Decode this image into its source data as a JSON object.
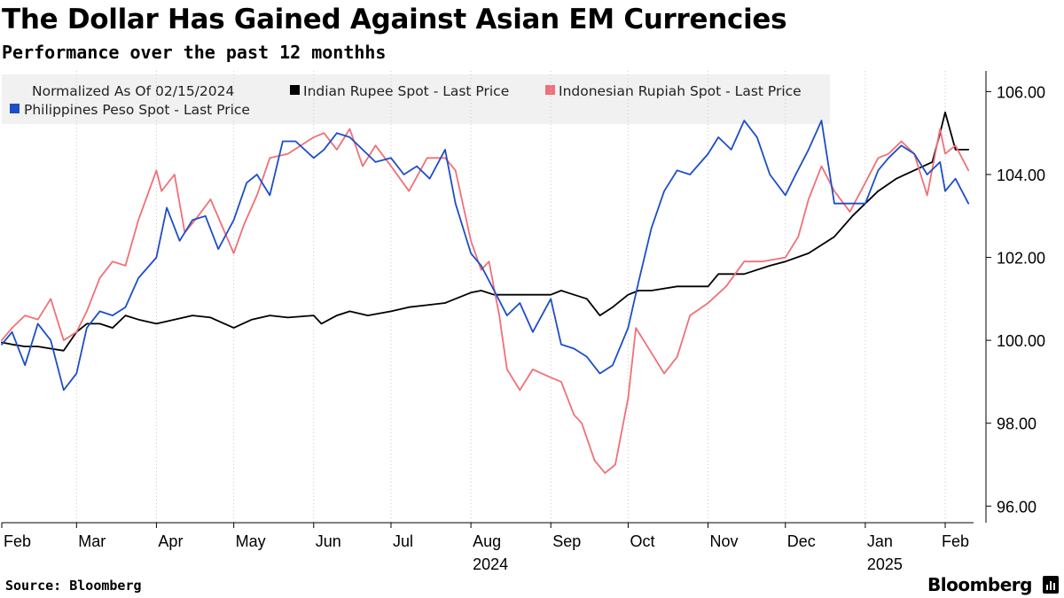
{
  "header": {
    "title": "The Dollar Has Gained Against Asian EM Currencies",
    "subtitle": "Performance over the past 12 monthhs"
  },
  "footer": {
    "source": "Source: Bloomberg",
    "brand": "Bloomberg"
  },
  "chart_data": {
    "type": "line",
    "legend_note": "Normalized As Of 02/15/2024",
    "legend_placement": "top-left",
    "x_range": [
      "2024-02-01",
      "2025-02-12"
    ],
    "ylim": [
      95.6,
      106.5
    ],
    "y_ticks": [
      96,
      98,
      100,
      102,
      104,
      106
    ],
    "y_tick_labels": [
      "96.00",
      "98.00",
      "100.00",
      "102.00",
      "104.00",
      "106.00"
    ],
    "y_axis_side": "right",
    "month_ticks": [
      "2024-02-01",
      "2024-03-01",
      "2024-04-01",
      "2024-05-01",
      "2024-06-01",
      "2024-07-01",
      "2024-08-01",
      "2024-09-01",
      "2024-10-01",
      "2024-11-01",
      "2024-12-01",
      "2025-01-01",
      "2025-02-01"
    ],
    "month_labels": [
      "Feb",
      "Mar",
      "Apr",
      "May",
      "Jun",
      "Jul",
      "Aug",
      "Sep",
      "Oct",
      "Nov",
      "Dec",
      "Jan",
      "Feb"
    ],
    "year_labels": [
      {
        "label": "2024",
        "date": "2024-08-01"
      },
      {
        "label": "2025",
        "date": "2025-01-01"
      }
    ],
    "grid": "vertical-dotted-at-month-starts",
    "series": [
      {
        "name": "Indian Rupee Spot - Last Price",
        "color": "#000000",
        "x": [
          "2024-02-01",
          "2024-02-05",
          "2024-02-10",
          "2024-02-15",
          "2024-02-20",
          "2024-02-25",
          "2024-03-01",
          "2024-03-05",
          "2024-03-10",
          "2024-03-15",
          "2024-03-20",
          "2024-03-25",
          "2024-04-01",
          "2024-04-08",
          "2024-04-15",
          "2024-04-22",
          "2024-05-01",
          "2024-05-08",
          "2024-05-15",
          "2024-05-22",
          "2024-06-01",
          "2024-06-04",
          "2024-06-10",
          "2024-06-15",
          "2024-06-22",
          "2024-07-01",
          "2024-07-08",
          "2024-07-15",
          "2024-07-22",
          "2024-08-01",
          "2024-08-05",
          "2024-08-10",
          "2024-08-20",
          "2024-09-01",
          "2024-09-05",
          "2024-09-10",
          "2024-09-15",
          "2024-09-20",
          "2024-09-25",
          "2024-10-01",
          "2024-10-05",
          "2024-10-10",
          "2024-10-20",
          "2024-11-01",
          "2024-11-05",
          "2024-11-15",
          "2024-11-25",
          "2024-12-01",
          "2024-12-10",
          "2024-12-20",
          "2024-12-27",
          "2025-01-01",
          "2025-01-06",
          "2025-01-13",
          "2025-01-20",
          "2025-01-27",
          "2025-01-30",
          "2025-02-01",
          "2025-02-05",
          "2025-02-10"
        ],
        "values": [
          99.95,
          99.9,
          99.85,
          99.85,
          99.8,
          99.75,
          100.2,
          100.4,
          100.4,
          100.3,
          100.6,
          100.5,
          100.4,
          100.5,
          100.6,
          100.55,
          100.3,
          100.5,
          100.6,
          100.55,
          100.6,
          100.4,
          100.6,
          100.7,
          100.6,
          100.7,
          100.8,
          100.85,
          100.9,
          101.15,
          101.2,
          101.1,
          101.1,
          101.1,
          101.2,
          101.1,
          101.0,
          100.6,
          100.8,
          101.1,
          101.2,
          101.2,
          101.3,
          101.3,
          101.6,
          101.6,
          101.8,
          101.9,
          102.1,
          102.5,
          103.0,
          103.3,
          103.6,
          103.9,
          104.1,
          104.3,
          105.0,
          105.5,
          104.6,
          104.6
        ]
      },
      {
        "name": "Indonesian Rupiah Spot - Last Price",
        "color": "#f07077",
        "x": [
          "2024-02-01",
          "2024-02-05",
          "2024-02-10",
          "2024-02-15",
          "2024-02-20",
          "2024-02-25",
          "2024-03-01",
          "2024-03-05",
          "2024-03-10",
          "2024-03-15",
          "2024-03-20",
          "2024-03-25",
          "2024-04-01",
          "2024-04-03",
          "2024-04-08",
          "2024-04-12",
          "2024-04-16",
          "2024-04-22",
          "2024-05-01",
          "2024-05-05",
          "2024-05-10",
          "2024-05-15",
          "2024-05-22",
          "2024-06-01",
          "2024-06-05",
          "2024-06-10",
          "2024-06-15",
          "2024-06-20",
          "2024-06-25",
          "2024-07-01",
          "2024-07-08",
          "2024-07-15",
          "2024-07-22",
          "2024-07-26",
          "2024-08-01",
          "2024-08-05",
          "2024-08-08",
          "2024-08-12",
          "2024-08-15",
          "2024-08-20",
          "2024-08-25",
          "2024-09-01",
          "2024-09-05",
          "2024-09-10",
          "2024-09-13",
          "2024-09-18",
          "2024-09-22",
          "2024-09-26",
          "2024-10-01",
          "2024-10-04",
          "2024-10-10",
          "2024-10-15",
          "2024-10-20",
          "2024-10-25",
          "2024-11-01",
          "2024-11-08",
          "2024-11-15",
          "2024-11-22",
          "2024-12-01",
          "2024-12-06",
          "2024-12-10",
          "2024-12-15",
          "2024-12-20",
          "2024-12-26",
          "2025-01-01",
          "2025-01-06",
          "2025-01-10",
          "2025-01-15",
          "2025-01-20",
          "2025-01-25",
          "2025-01-30",
          "2025-02-01",
          "2025-02-05",
          "2025-02-10"
        ],
        "values": [
          100.0,
          100.3,
          100.6,
          100.5,
          101.0,
          100.0,
          100.2,
          100.7,
          101.5,
          101.9,
          101.8,
          102.9,
          104.1,
          103.6,
          104.0,
          102.6,
          102.9,
          103.4,
          102.1,
          102.8,
          103.5,
          104.4,
          104.5,
          104.9,
          105.0,
          104.6,
          105.1,
          104.2,
          104.7,
          104.2,
          103.6,
          104.4,
          104.4,
          104.1,
          102.4,
          101.7,
          101.9,
          100.6,
          99.3,
          98.8,
          99.3,
          99.1,
          99.0,
          98.2,
          98.0,
          97.1,
          96.8,
          97.0,
          98.6,
          100.3,
          99.7,
          99.2,
          99.6,
          100.6,
          100.9,
          101.3,
          101.9,
          101.9,
          102.0,
          102.5,
          103.4,
          104.2,
          103.6,
          103.1,
          103.8,
          104.4,
          104.5,
          104.8,
          104.5,
          103.5,
          105.1,
          104.5,
          104.7,
          104.1
        ]
      },
      {
        "name": "Philippines Peso Spot - Last Price",
        "color": "#1d4ec7",
        "x": [
          "2024-02-01",
          "2024-02-05",
          "2024-02-10",
          "2024-02-15",
          "2024-02-20",
          "2024-02-25",
          "2024-03-01",
          "2024-03-05",
          "2024-03-10",
          "2024-03-15",
          "2024-03-20",
          "2024-03-25",
          "2024-04-01",
          "2024-04-05",
          "2024-04-10",
          "2024-04-15",
          "2024-04-20",
          "2024-04-25",
          "2024-05-01",
          "2024-05-06",
          "2024-05-10",
          "2024-05-15",
          "2024-05-20",
          "2024-05-25",
          "2024-06-01",
          "2024-06-05",
          "2024-06-10",
          "2024-06-15",
          "2024-06-20",
          "2024-06-25",
          "2024-07-01",
          "2024-07-06",
          "2024-07-11",
          "2024-07-16",
          "2024-07-22",
          "2024-07-26",
          "2024-08-01",
          "2024-08-05",
          "2024-08-10",
          "2024-08-15",
          "2024-08-20",
          "2024-08-25",
          "2024-09-01",
          "2024-09-05",
          "2024-09-10",
          "2024-09-15",
          "2024-09-20",
          "2024-09-25",
          "2024-10-01",
          "2024-10-05",
          "2024-10-10",
          "2024-10-15",
          "2024-10-20",
          "2024-10-25",
          "2024-11-01",
          "2024-11-05",
          "2024-11-10",
          "2024-11-15",
          "2024-11-20",
          "2024-11-25",
          "2024-12-01",
          "2024-12-05",
          "2024-12-10",
          "2024-12-15",
          "2024-12-20",
          "2024-12-26",
          "2025-01-01",
          "2025-01-06",
          "2025-01-10",
          "2025-01-15",
          "2025-01-20",
          "2025-01-25",
          "2025-01-30",
          "2025-02-01",
          "2025-02-05",
          "2025-02-10"
        ],
        "values": [
          99.9,
          100.2,
          99.4,
          100.4,
          100.0,
          98.8,
          99.2,
          100.3,
          100.7,
          100.6,
          100.8,
          101.5,
          102.0,
          103.2,
          102.4,
          102.9,
          103.0,
          102.2,
          102.9,
          103.8,
          104.0,
          103.5,
          104.8,
          104.8,
          104.4,
          104.6,
          105.0,
          104.9,
          104.6,
          104.3,
          104.4,
          104.0,
          104.2,
          103.9,
          104.6,
          103.3,
          102.1,
          101.8,
          101.2,
          100.6,
          100.9,
          100.2,
          101.0,
          99.9,
          99.8,
          99.6,
          99.2,
          99.4,
          100.3,
          101.4,
          102.7,
          103.6,
          104.1,
          104.0,
          104.5,
          104.9,
          104.6,
          105.3,
          104.9,
          104.0,
          103.5,
          104.0,
          104.6,
          105.3,
          103.3,
          103.3,
          103.3,
          104.1,
          104.4,
          104.7,
          104.5,
          104.0,
          104.3,
          103.6,
          103.9,
          103.3
        ]
      }
    ]
  }
}
